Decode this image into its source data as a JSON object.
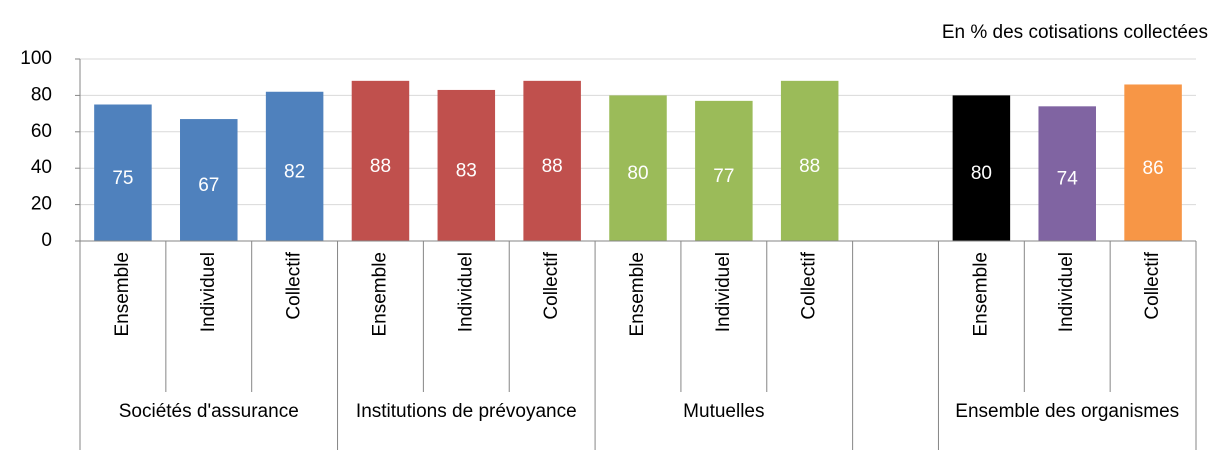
{
  "chart_data": {
    "type": "bar",
    "subtitle": "En % des cotisations collectées",
    "groups": [
      {
        "name": "Sociétés d'assurance",
        "categories": [
          "Ensemble",
          "Individuel",
          "Collectif"
        ]
      },
      {
        "name": "Institutions de prévoyance",
        "categories": [
          "Ensemble",
          "Individuel",
          "Collectif"
        ]
      },
      {
        "name": "Mutuelles",
        "categories": [
          "Ensemble",
          "Individuel",
          "Collectif"
        ]
      },
      {
        "name": null,
        "categories": [
          null
        ]
      },
      {
        "name": "Ensemble des organismes",
        "categories": [
          "Ensemble",
          "Individuel",
          "Collectif"
        ]
      }
    ],
    "values": [
      75,
      67,
      82,
      88,
      83,
      88,
      80,
      77,
      88,
      null,
      80,
      74,
      86
    ],
    "colors": [
      "#4f81bd",
      "#4f81bd",
      "#4f81bd",
      "#c0504d",
      "#c0504d",
      "#c0504d",
      "#9bbb59",
      "#9bbb59",
      "#9bbb59",
      null,
      "#000000",
      "#8064a2",
      "#f79646"
    ],
    "ylim": [
      0,
      100
    ],
    "yticks": [
      0,
      20,
      40,
      60,
      80,
      100
    ],
    "grid": true
  }
}
